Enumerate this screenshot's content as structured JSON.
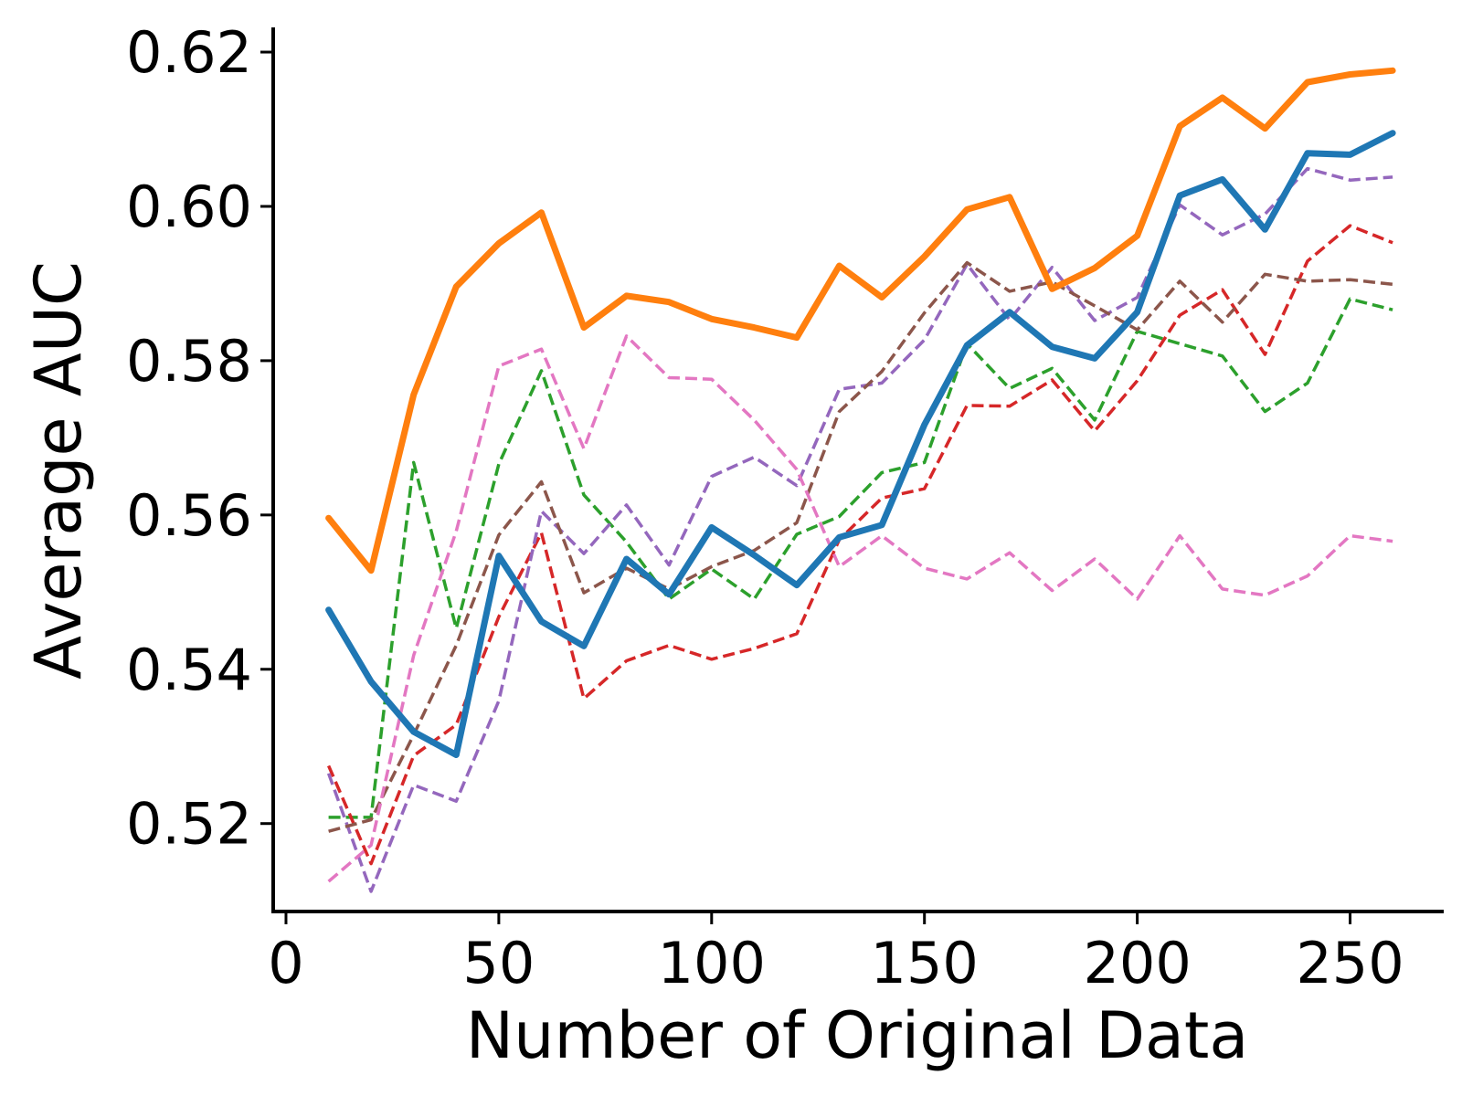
{
  "chart_data": {
    "type": "line",
    "title": "",
    "xlabel": "Number of Original Data",
    "ylabel": "Average AUC",
    "xlim": [
      -3,
      272
    ],
    "ylim": [
      0.5086,
      0.6232
    ],
    "xticks": [
      0,
      50,
      100,
      150,
      200,
      250
    ],
    "yticks": [
      0.52,
      0.54,
      0.56,
      0.58,
      0.6,
      0.62
    ],
    "xtick_labels": [
      "0",
      "50",
      "100",
      "150",
      "200",
      "250"
    ],
    "ytick_labels": [
      "0.52",
      "0.54",
      "0.56",
      "0.58",
      "0.60",
      "0.62"
    ],
    "grid": false,
    "legend": "none",
    "x": [
      10,
      20,
      30,
      40,
      50,
      60,
      70,
      80,
      90,
      100,
      110,
      120,
      130,
      140,
      150,
      160,
      170,
      180,
      190,
      200,
      210,
      220,
      230,
      240,
      250,
      260
    ],
    "series": [
      {
        "color": "#ff7f0e",
        "style": "solid",
        "width": 7,
        "values": [
          0.5596,
          0.5528,
          0.5756,
          0.5896,
          0.5952,
          0.5992,
          0.5843,
          0.5884,
          0.5876,
          0.5854,
          0.5843,
          0.583,
          0.5923,
          0.5882,
          0.5935,
          0.5996,
          0.6012,
          0.5893,
          0.592,
          0.5962,
          0.6104,
          0.6141,
          0.6101,
          0.6161,
          0.6171,
          0.6176
        ]
      },
      {
        "color": "#1f77b4",
        "style": "solid",
        "width": 7,
        "values": [
          0.5477,
          0.5384,
          0.5319,
          0.5289,
          0.5547,
          0.5462,
          0.543,
          0.5543,
          0.5497,
          0.5584,
          0.5548,
          0.5509,
          0.5571,
          0.5587,
          0.5717,
          0.582,
          0.5863,
          0.5818,
          0.5803,
          0.5863,
          0.6014,
          0.6035,
          0.597,
          0.6069,
          0.6067,
          0.6095
        ]
      },
      {
        "color": "#2ca02c",
        "style": "dashed",
        "width": 3.5,
        "values": [
          0.5208,
          0.5208,
          0.5668,
          0.5453,
          0.5666,
          0.5787,
          0.5626,
          0.5565,
          0.5491,
          0.553,
          0.5491,
          0.5575,
          0.5598,
          0.5655,
          0.5668,
          0.5822,
          0.5764,
          0.579,
          0.5723,
          0.5838,
          0.5822,
          0.5806,
          0.5734,
          0.5771,
          0.588,
          0.5866
        ]
      },
      {
        "color": "#d62728",
        "style": "dashed",
        "width": 3.5,
        "values": [
          0.5275,
          0.5148,
          0.5288,
          0.5328,
          0.5468,
          0.5577,
          0.5362,
          0.5411,
          0.5431,
          0.5413,
          0.5427,
          0.5446,
          0.5568,
          0.5622,
          0.5634,
          0.5742,
          0.5741,
          0.5775,
          0.5709,
          0.5774,
          0.5859,
          0.5892,
          0.5808,
          0.5929,
          0.5975,
          0.5953
        ]
      },
      {
        "color": "#9467bd",
        "style": "dashed",
        "width": 3.5,
        "values": [
          0.5265,
          0.5112,
          0.525,
          0.5229,
          0.5359,
          0.5605,
          0.555,
          0.5613,
          0.5535,
          0.565,
          0.5675,
          0.5638,
          0.5763,
          0.5771,
          0.5827,
          0.5925,
          0.5853,
          0.5921,
          0.5852,
          0.5882,
          0.6002,
          0.5963,
          0.599,
          0.6049,
          0.6034,
          0.6038
        ]
      },
      {
        "color": "#8c564b",
        "style": "dashed",
        "width": 3.5,
        "values": [
          0.519,
          0.5205,
          0.5315,
          0.5431,
          0.5574,
          0.5643,
          0.5499,
          0.5531,
          0.5504,
          0.5533,
          0.5554,
          0.559,
          0.5734,
          0.5786,
          0.5862,
          0.5927,
          0.589,
          0.5902,
          0.5871,
          0.584,
          0.5903,
          0.585,
          0.5912,
          0.5903,
          0.5905,
          0.5899
        ]
      },
      {
        "color": "#e377c2",
        "style": "dashed",
        "width": 3.5,
        "values": [
          0.5125,
          0.5172,
          0.5418,
          0.5579,
          0.5793,
          0.5815,
          0.5686,
          0.5832,
          0.5778,
          0.5776,
          0.5723,
          0.5659,
          0.5533,
          0.5573,
          0.5531,
          0.5517,
          0.5551,
          0.5502,
          0.5543,
          0.5491,
          0.5573,
          0.5504,
          0.5496,
          0.5521,
          0.5573,
          0.5566
        ]
      }
    ]
  }
}
